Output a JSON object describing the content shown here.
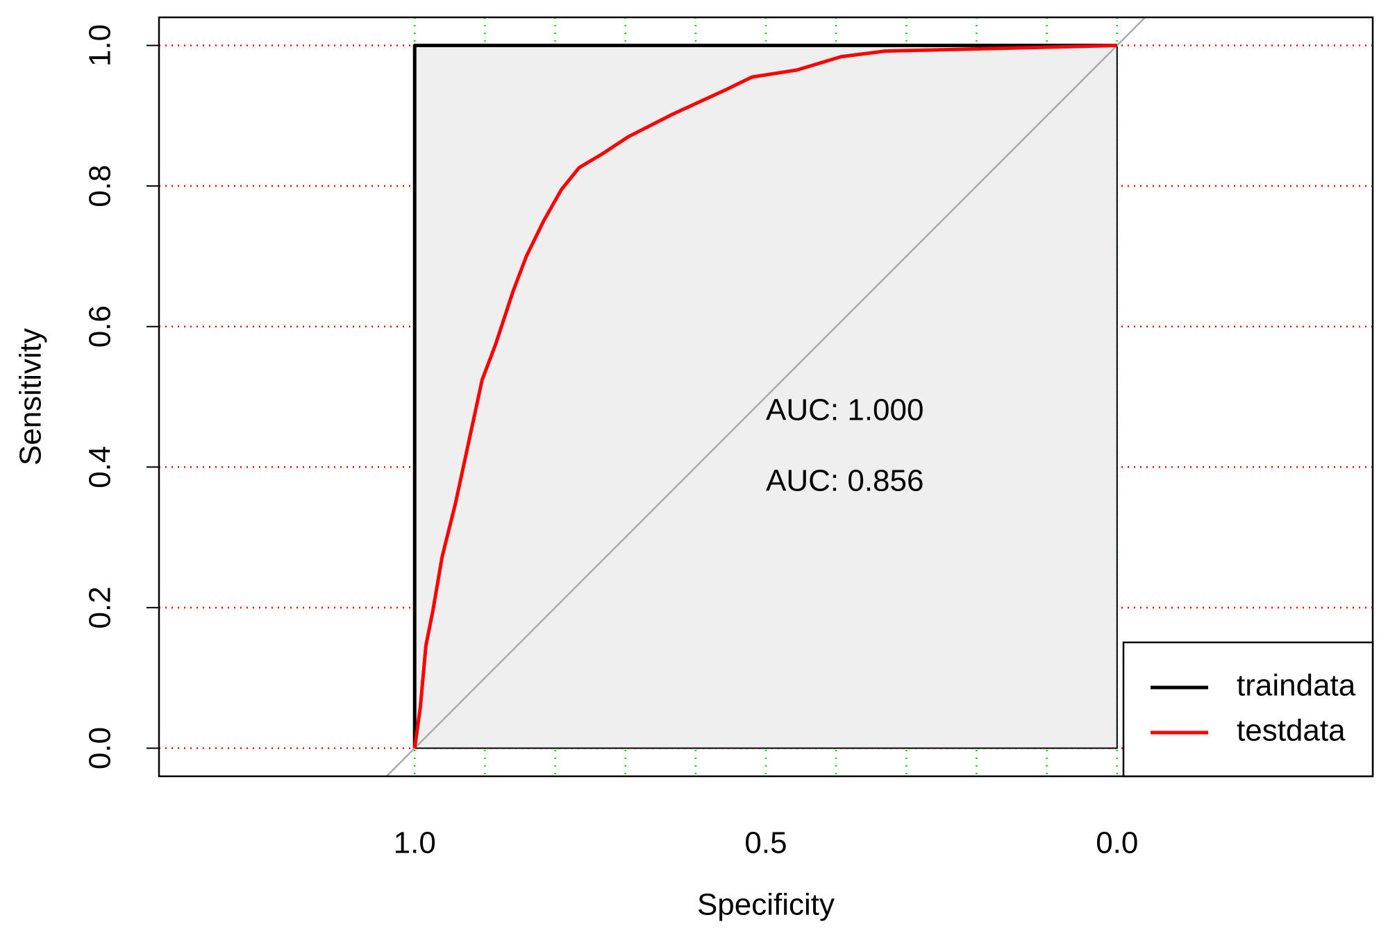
{
  "chart_data": {
    "type": "line",
    "xlabel": "Specificity",
    "ylabel": "Sensitivity",
    "xlim": [
      1.364,
      -0.364
    ],
    "ylim": [
      -0.04,
      1.04
    ],
    "xticks": [
      {
        "value": 1,
        "label": "1.0"
      },
      {
        "value": 0.5,
        "label": "0.5"
      },
      {
        "value": 0,
        "label": "0.0"
      }
    ],
    "yticks": [
      {
        "value": 0,
        "label": "0.0"
      },
      {
        "value": 0.2,
        "label": "0.2"
      },
      {
        "value": 0.4,
        "label": "0.4"
      },
      {
        "value": 0.6,
        "label": "0.6"
      },
      {
        "value": 0.8,
        "label": "0.8"
      },
      {
        "value": 1,
        "label": "1.0"
      }
    ],
    "ygrid_color": "#ff0000",
    "xgrid_color": "#00dd00",
    "xgrid_lines": [
      0,
      0.1,
      0.2,
      0.3,
      0.4,
      0.5,
      0.6,
      0.7,
      0.8,
      0.9,
      1
    ],
    "auc_fill": "#efefef",
    "diagonal_color": "#aaaaaa",
    "legend": "bottom-right",
    "annotations": [
      {
        "text": "AUC: 1.000",
        "color": "#000000"
      },
      {
        "text": "AUC: 0.856",
        "color": "#ff0000"
      }
    ],
    "series": [
      {
        "name": "traindata",
        "color": "#000000",
        "x": [
          1,
          1,
          0
        ],
        "values": [
          0,
          1,
          1
        ]
      },
      {
        "name": "testdata",
        "color": "#ff0000",
        "x": [
          1,
          0.992,
          0.984,
          0.974,
          0.961,
          0.942,
          0.923,
          0.904,
          0.885,
          0.86,
          0.841,
          0.816,
          0.791,
          0.766,
          0.734,
          0.696,
          0.633,
          0.557,
          0.52,
          0.456,
          0.393,
          0.33,
          0.204,
          0
        ],
        "values": [
          0,
          0.058,
          0.146,
          0.196,
          0.272,
          0.348,
          0.436,
          0.524,
          0.574,
          0.65,
          0.7,
          0.751,
          0.795,
          0.826,
          0.845,
          0.87,
          0.902,
          0.937,
          0.955,
          0.965,
          0.984,
          0.992,
          0.995,
          1
        ]
      }
    ]
  }
}
